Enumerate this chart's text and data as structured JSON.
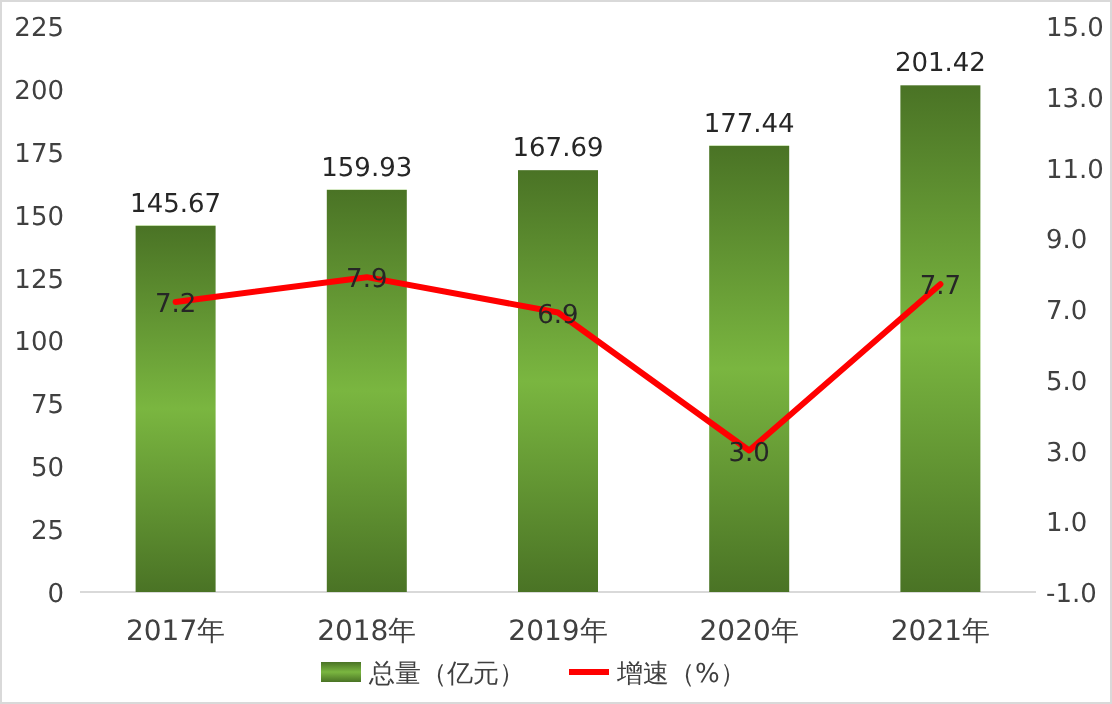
{
  "chart_data": {
    "type": "bar",
    "categories": [
      "2017年",
      "2018年",
      "2019年",
      "2020年",
      "2021年"
    ],
    "series": [
      {
        "name": "总量（亿元）",
        "color": "#7ab640",
        "values": [
          145.67,
          159.93,
          167.69,
          177.44,
          201.42
        ]
      },
      {
        "name": "增速（%）",
        "type": "line",
        "axis": "y2",
        "color": "#ff0000",
        "values": [
          7.2,
          7.9,
          6.9,
          3.0,
          7.7
        ],
        "value_labels": [
          "7.2",
          "7.9",
          "6.9",
          "3.0",
          "7.7"
        ]
      }
    ],
    "ylim": [
      0,
      225
    ],
    "yticks": [
      0,
      25,
      50,
      75,
      100,
      125,
      150,
      175,
      200,
      225
    ],
    "y2lim": [
      -1,
      15
    ],
    "y2ticks": [
      {
        "value": -1,
        "label": "-1.0"
      },
      {
        "value": 1,
        "label": "1.0"
      },
      {
        "value": 3,
        "label": "3.0"
      },
      {
        "value": 5,
        "label": "5.0"
      },
      {
        "value": 7,
        "label": "7.0"
      },
      {
        "value": 9,
        "label": "9.0"
      },
      {
        "value": 11,
        "label": "11.0"
      },
      {
        "value": 13,
        "label": "13.0"
      },
      {
        "value": 15,
        "label": "15.0"
      }
    ],
    "data_labels": true,
    "legend": "bottom",
    "marker": "none",
    "line_style": "solid"
  }
}
